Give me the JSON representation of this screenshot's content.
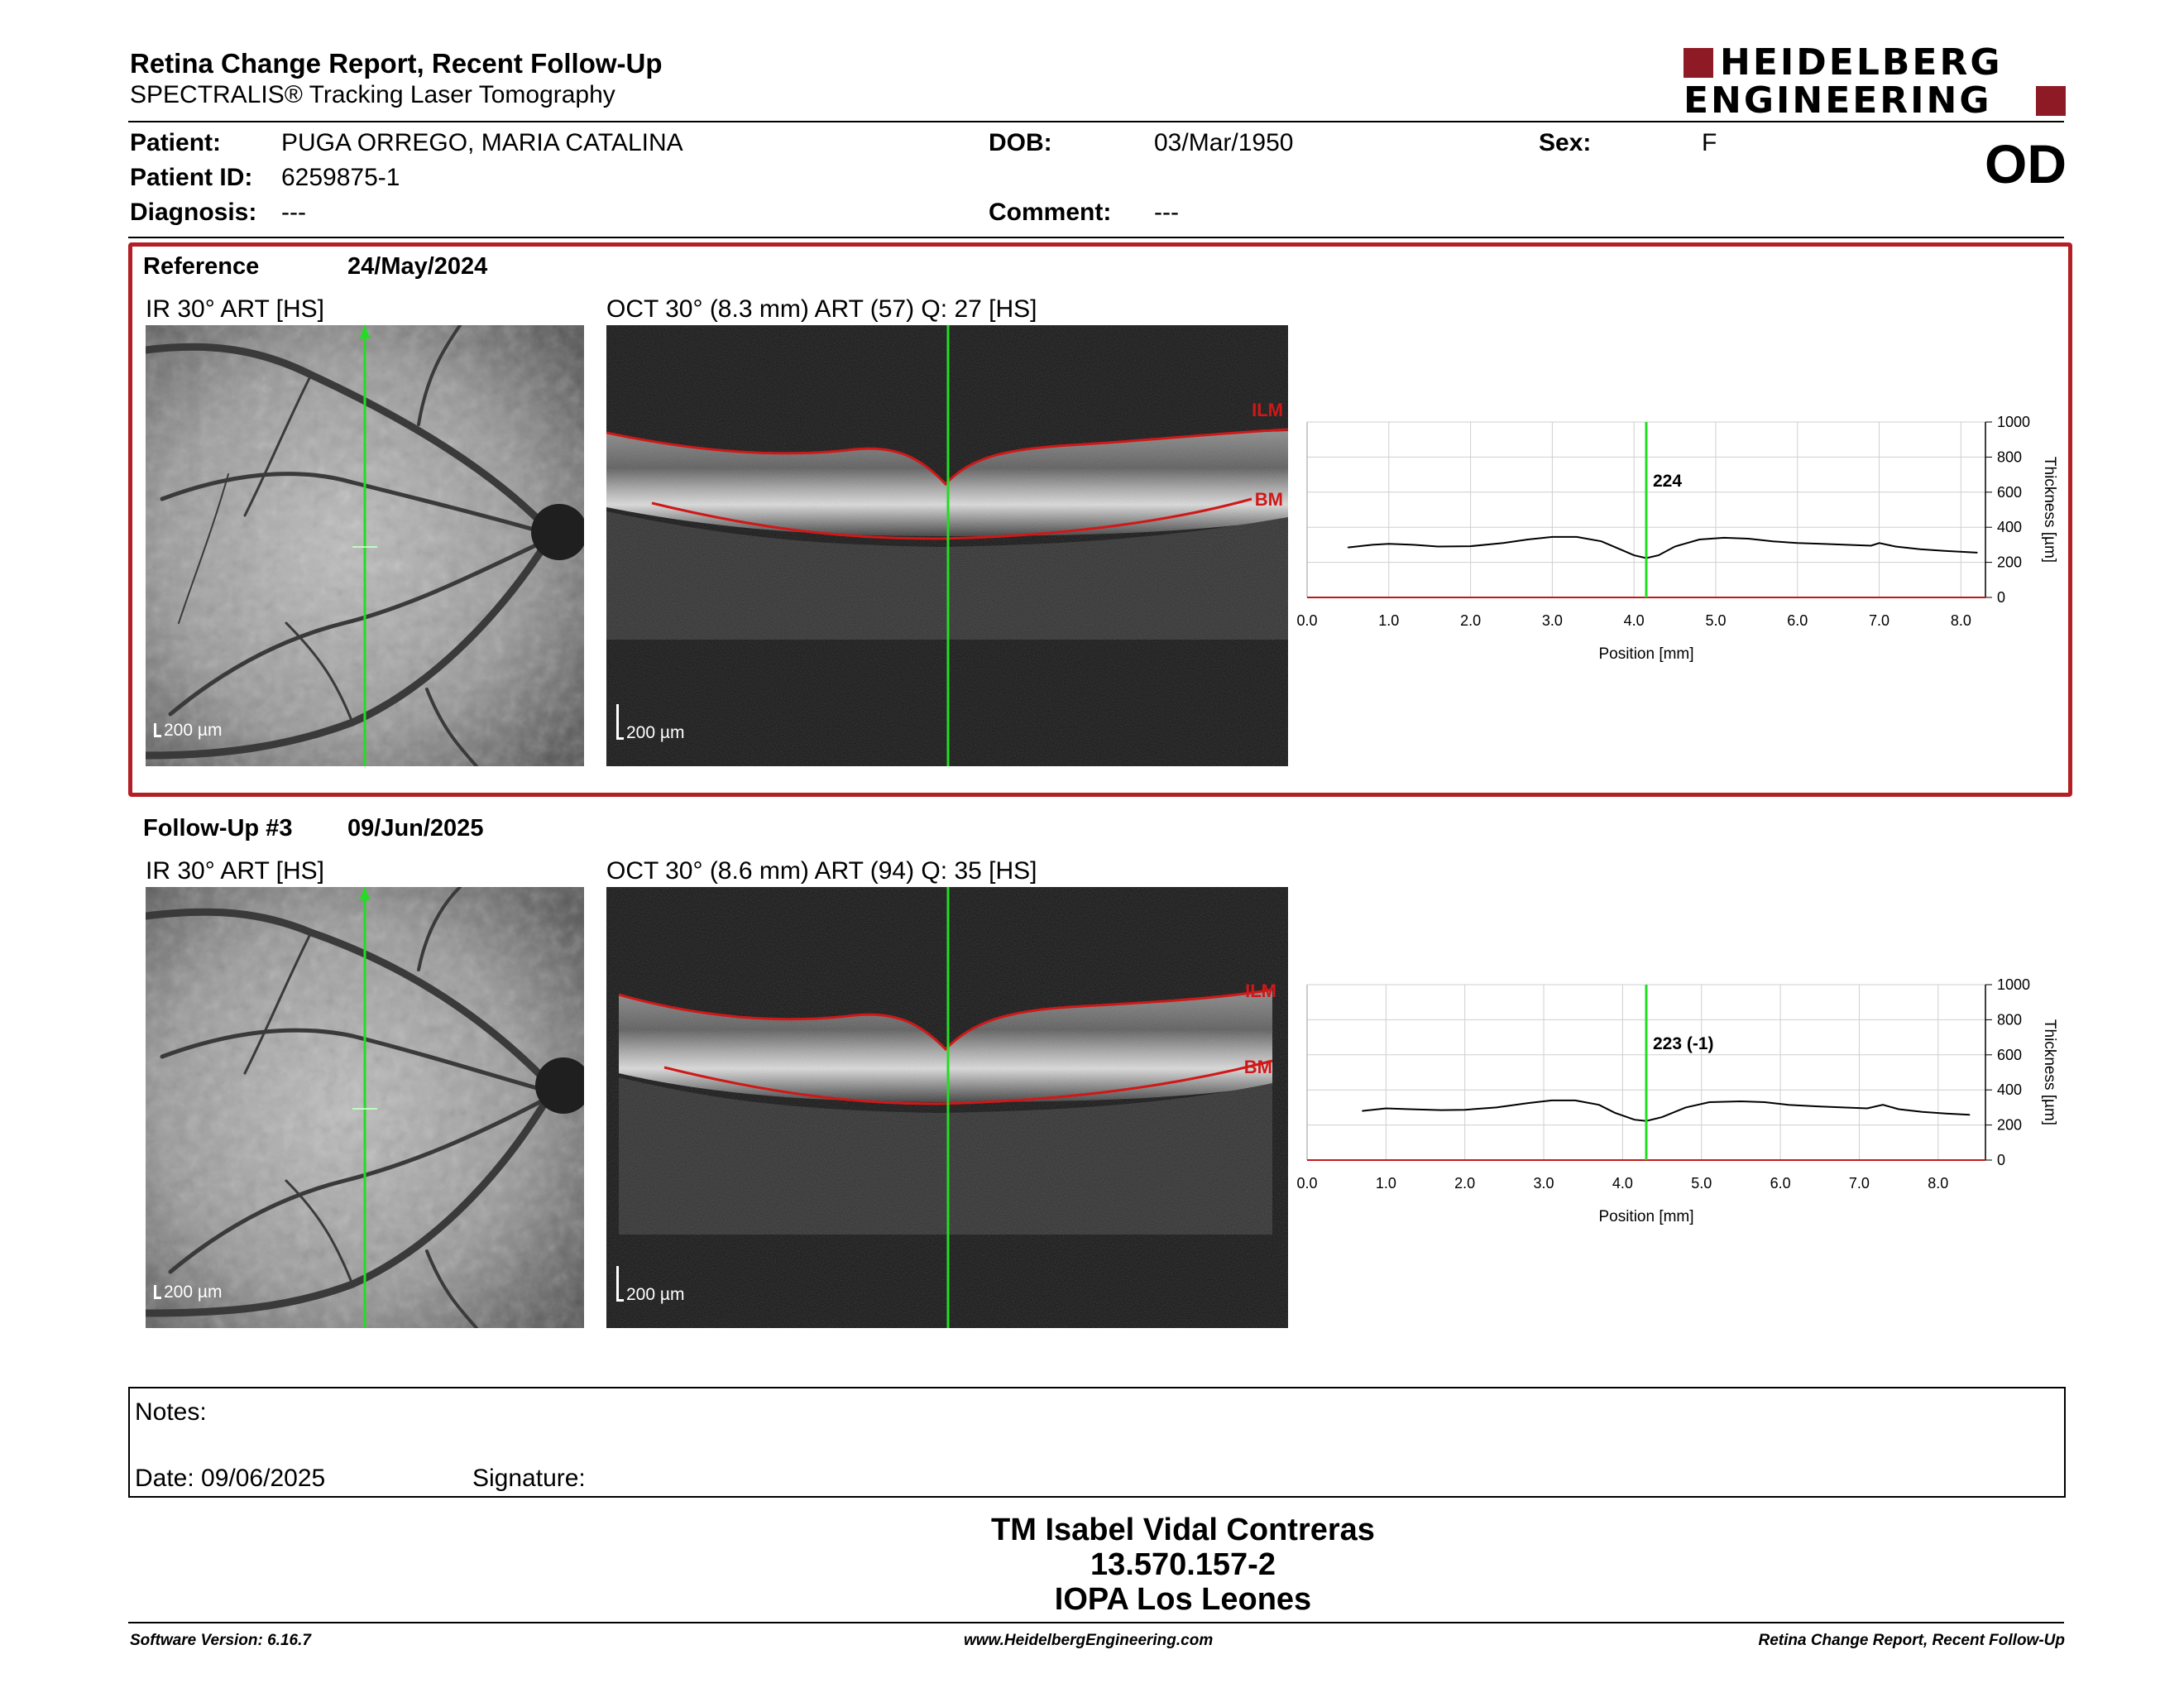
{
  "header": {
    "title": "Retina Change Report, Recent Follow-Up",
    "subtitle": "SPECTRALIS® Tracking Laser Tomography",
    "logo_line1": "HEIDELBERG",
    "logo_line2": "ENGINEERING",
    "eye": "OD"
  },
  "patient": {
    "patient_label": "Patient:",
    "patient_value": "PUGA ORREGO, MARIA CATALINA",
    "id_label": "Patient ID:",
    "id_value": "6259875-1",
    "diagnosis_label": "Diagnosis:",
    "diagnosis_value": "---",
    "dob_label": "DOB:",
    "dob_value": "03/Mar/1950",
    "comment_label": "Comment:",
    "comment_value": "---",
    "sex_label": "Sex:",
    "sex_value": "F"
  },
  "reference": {
    "label": "Reference",
    "date": "24/May/2024",
    "ir_label": "IR 30° ART [HS]",
    "oct_label": "OCT 30° (8.3 mm) ART (57) Q: 27 [HS]",
    "ir_scale": "200 µm",
    "oct_scale": "200 µm",
    "ilm": "ILM",
    "bm": "BM"
  },
  "followup": {
    "label": "Follow-Up #3",
    "date": "09/Jun/2025",
    "ir_label": "IR 30° ART [HS]",
    "oct_label": "OCT 30° (8.6 mm) ART (94) Q: 35 [HS]",
    "ir_scale": "200 µm",
    "oct_scale": "200 µm",
    "ilm": "ILM",
    "bm": "BM"
  },
  "chart_data": [
    {
      "type": "line",
      "xlabel": "Position [mm]",
      "ylabel": "Thickness [µm]",
      "xlim": [
        0,
        8.3
      ],
      "ylim": [
        0,
        1000
      ],
      "x_ticks": [
        "0.0",
        "1.0",
        "2.0",
        "3.0",
        "4.0",
        "5.0",
        "6.0",
        "7.0",
        "8.0"
      ],
      "y_ticks": [
        "0",
        "200",
        "400",
        "600",
        "800",
        "1000"
      ],
      "grid": true,
      "marker_x": 4.15,
      "marker_label": "224",
      "x": [
        0.5,
        0.8,
        1.0,
        1.3,
        1.6,
        2.0,
        2.4,
        2.7,
        3.0,
        3.3,
        3.6,
        3.8,
        4.0,
        4.15,
        4.3,
        4.5,
        4.8,
        5.1,
        5.4,
        5.7,
        6.0,
        6.3,
        6.6,
        6.9,
        7.0,
        7.2,
        7.5,
        7.8,
        8.2
      ],
      "y": [
        285,
        300,
        305,
        300,
        290,
        292,
        310,
        330,
        345,
        345,
        320,
        280,
        240,
        224,
        240,
        290,
        330,
        340,
        335,
        320,
        310,
        305,
        300,
        295,
        310,
        290,
        275,
        265,
        255
      ]
    },
    {
      "type": "line",
      "xlabel": "Position [mm]",
      "ylabel": "Thickness [µm]",
      "xlim": [
        0,
        8.6
      ],
      "ylim": [
        0,
        1000
      ],
      "x_ticks": [
        "0.0",
        "1.0",
        "2.0",
        "3.0",
        "4.0",
        "5.0",
        "6.0",
        "7.0",
        "8.0"
      ],
      "y_ticks": [
        "0",
        "200",
        "400",
        "600",
        "800",
        "1000"
      ],
      "grid": true,
      "marker_x": 4.3,
      "marker_label": "223 (-1)",
      "x": [
        0.7,
        1.0,
        1.3,
        1.7,
        2.0,
        2.4,
        2.8,
        3.1,
        3.4,
        3.7,
        3.9,
        4.15,
        4.3,
        4.5,
        4.8,
        5.1,
        5.5,
        5.8,
        6.1,
        6.5,
        6.8,
        7.1,
        7.3,
        7.5,
        7.8,
        8.1,
        8.4
      ],
      "y": [
        280,
        295,
        290,
        285,
        287,
        300,
        325,
        340,
        340,
        315,
        270,
        230,
        223,
        245,
        300,
        330,
        335,
        330,
        315,
        305,
        300,
        295,
        315,
        290,
        275,
        265,
        258
      ]
    }
  ],
  "notes": {
    "notes_label": "Notes:",
    "date_label": "Date: 09/06/2025",
    "signature_label": "Signature:"
  },
  "signer": {
    "name": "TM Isabel Vidal Contreras",
    "id": "13.570.157-2",
    "clinic": "IOPA Los Leones"
  },
  "footer": {
    "version": "Software Version: 6.16.7",
    "url": "www.HeidelbergEngineering.com",
    "report": "Retina Change Report, Recent Follow-Up"
  },
  "colors": {
    "brand_red": "#8e1a25",
    "frame_red": "#b21f24",
    "marker_green": "#22dd22",
    "segment_red": "#d01818"
  }
}
